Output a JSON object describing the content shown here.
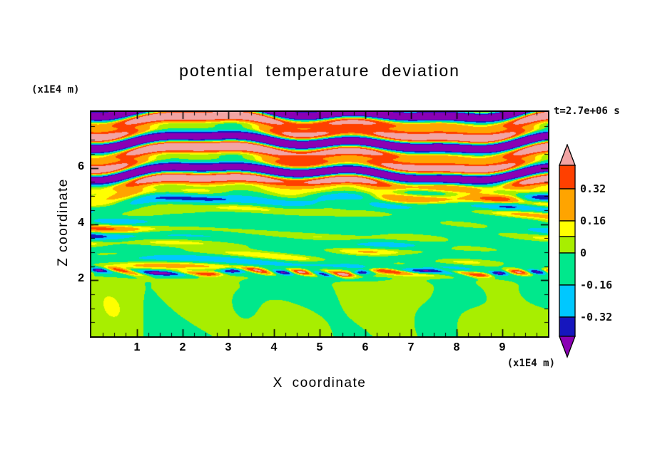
{
  "title": "potential temperature deviation",
  "timestamp": "t=2.7e+06 s",
  "axes": {
    "x_label": "X coordinate",
    "x_unit": "(x1E4 m)",
    "z_label": "Z coordinate",
    "z_unit": "(x1E4 m)",
    "x_ticks": [
      1,
      2,
      3,
      4,
      5,
      6,
      7,
      8,
      9
    ],
    "z_ticks": [
      2,
      4,
      6
    ]
  },
  "colorbar": {
    "arrow_h": 30,
    "arrow_top_color": "#f2a4a4",
    "arrow_bottom_color": "#8a00b4",
    "segments": [
      {
        "color": "#ff4000",
        "h": 33
      },
      {
        "color": "#ffa400",
        "h": 45
      },
      {
        "color": "#ffff00",
        "h": 22
      },
      {
        "color": "#a8ee00",
        "h": 23
      },
      {
        "color": "#00e88c",
        "h": 45
      },
      {
        "color": "#00c8ff",
        "h": 45
      },
      {
        "color": "#1616be",
        "h": 27
      }
    ],
    "labels": [
      {
        "text": "0.32",
        "boundary": 1
      },
      {
        "text": "0.16",
        "boundary": 2
      },
      {
        "text": "0",
        "boundary": 4
      },
      {
        "text": "-0.16",
        "boundary": 5
      },
      {
        "text": "-0.32",
        "boundary": 6
      }
    ]
  },
  "chart_data": {
    "type": "heatmap",
    "title": "potential temperature deviation",
    "xlabel": "X coordinate",
    "ylabel": "Z coordinate",
    "x_unit": "(x1E4 m)",
    "y_unit": "(x1E4 m)",
    "time_label": "t=2.7e+06 s",
    "xlim": [
      0,
      10
    ],
    "ylim": [
      0,
      8
    ],
    "x_major_ticks": [
      1,
      2,
      3,
      4,
      5,
      6,
      7,
      8,
      9
    ],
    "y_major_ticks": [
      2,
      4,
      6
    ],
    "x_minor_step": 0.25,
    "y_minor_step": 0.5,
    "colorbar_tick_labels": [
      0.32,
      0.16,
      0,
      -0.16,
      -0.32
    ],
    "contour_levels": [
      -0.48,
      -0.32,
      -0.16,
      0,
      0.08,
      0.16,
      0.32,
      0.48
    ],
    "band_colors": [
      "#8a00b4",
      "#1616be",
      "#00c8ff",
      "#00e88c",
      "#a8ee00",
      "#ffff00",
      "#ffa400",
      "#ff4000",
      "#f2a4a4"
    ],
    "legend_position": "right-colorbar",
    "grid": false,
    "regions": [
      {
        "z_range": [
          0,
          2.1
        ],
        "description": "well-mixed layer, deviation near 0: green background with yellow-green blobs"
      },
      {
        "z_range": [
          2.1,
          2.6
        ],
        "description": "sharp inversion line with thin strong +/- filaments (navy and red specks)"
      },
      {
        "z_range": [
          2.6,
          5.1
        ],
        "description": "fine tilted horizontal wave streaks, amplitude growing to about +/-0.4 (green/cyan with yellow-orange-red filaments)"
      },
      {
        "z_range": [
          5.1,
          8
        ],
        "description": "large-amplitude layered bands exceeding +/-0.48: wide pink and purple bands edged by red/orange and blue streaks"
      }
    ]
  }
}
